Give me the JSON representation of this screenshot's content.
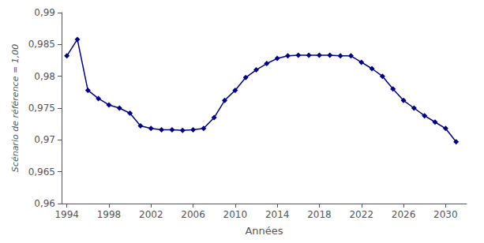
{
  "chart_data": {
    "type": "line",
    "xlabel": "Années",
    "ylabel": "Scénario de référence = 1,00",
    "x": [
      1994,
      1995,
      1996,
      1997,
      1998,
      1999,
      2000,
      2001,
      2002,
      2003,
      2004,
      2005,
      2006,
      2007,
      2008,
      2009,
      2010,
      2011,
      2012,
      2013,
      2014,
      2015,
      2016,
      2017,
      2018,
      2019,
      2020,
      2021,
      2022,
      2023,
      2024,
      2025,
      2026,
      2027,
      2028,
      2029,
      2030,
      2031
    ],
    "values": [
      0.9832,
      0.9858,
      0.9778,
      0.9765,
      0.9755,
      0.975,
      0.9742,
      0.9722,
      0.9718,
      0.9716,
      0.9716,
      0.9715,
      0.9716,
      0.9718,
      0.9735,
      0.9762,
      0.9778,
      0.9798,
      0.981,
      0.982,
      0.9828,
      0.9832,
      0.9833,
      0.9833,
      0.9833,
      0.9833,
      0.9832,
      0.9832,
      0.9822,
      0.9812,
      0.98,
      0.978,
      0.9762,
      0.975,
      0.9738,
      0.9728,
      0.9718,
      0.9697
    ],
    "color": "#00008B",
    "marker": "diamond",
    "xlim": [
      1993.5,
      2032.0
    ],
    "xticks": [
      1994,
      1998,
      2002,
      2006,
      2010,
      2014,
      2018,
      2022,
      2026,
      2030
    ],
    "ylim": [
      0.96,
      0.99
    ],
    "yticks": [
      {
        "value": 0.96,
        "label": "0,96"
      },
      {
        "value": 0.965,
        "label": "0,965"
      },
      {
        "value": 0.97,
        "label": "0,97"
      },
      {
        "value": 0.975,
        "label": "0,975"
      },
      {
        "value": 0.98,
        "label": "0,98"
      },
      {
        "value": 0.985,
        "label": "0,985"
      },
      {
        "value": 0.99,
        "label": "0,99"
      }
    ],
    "grid": false
  }
}
